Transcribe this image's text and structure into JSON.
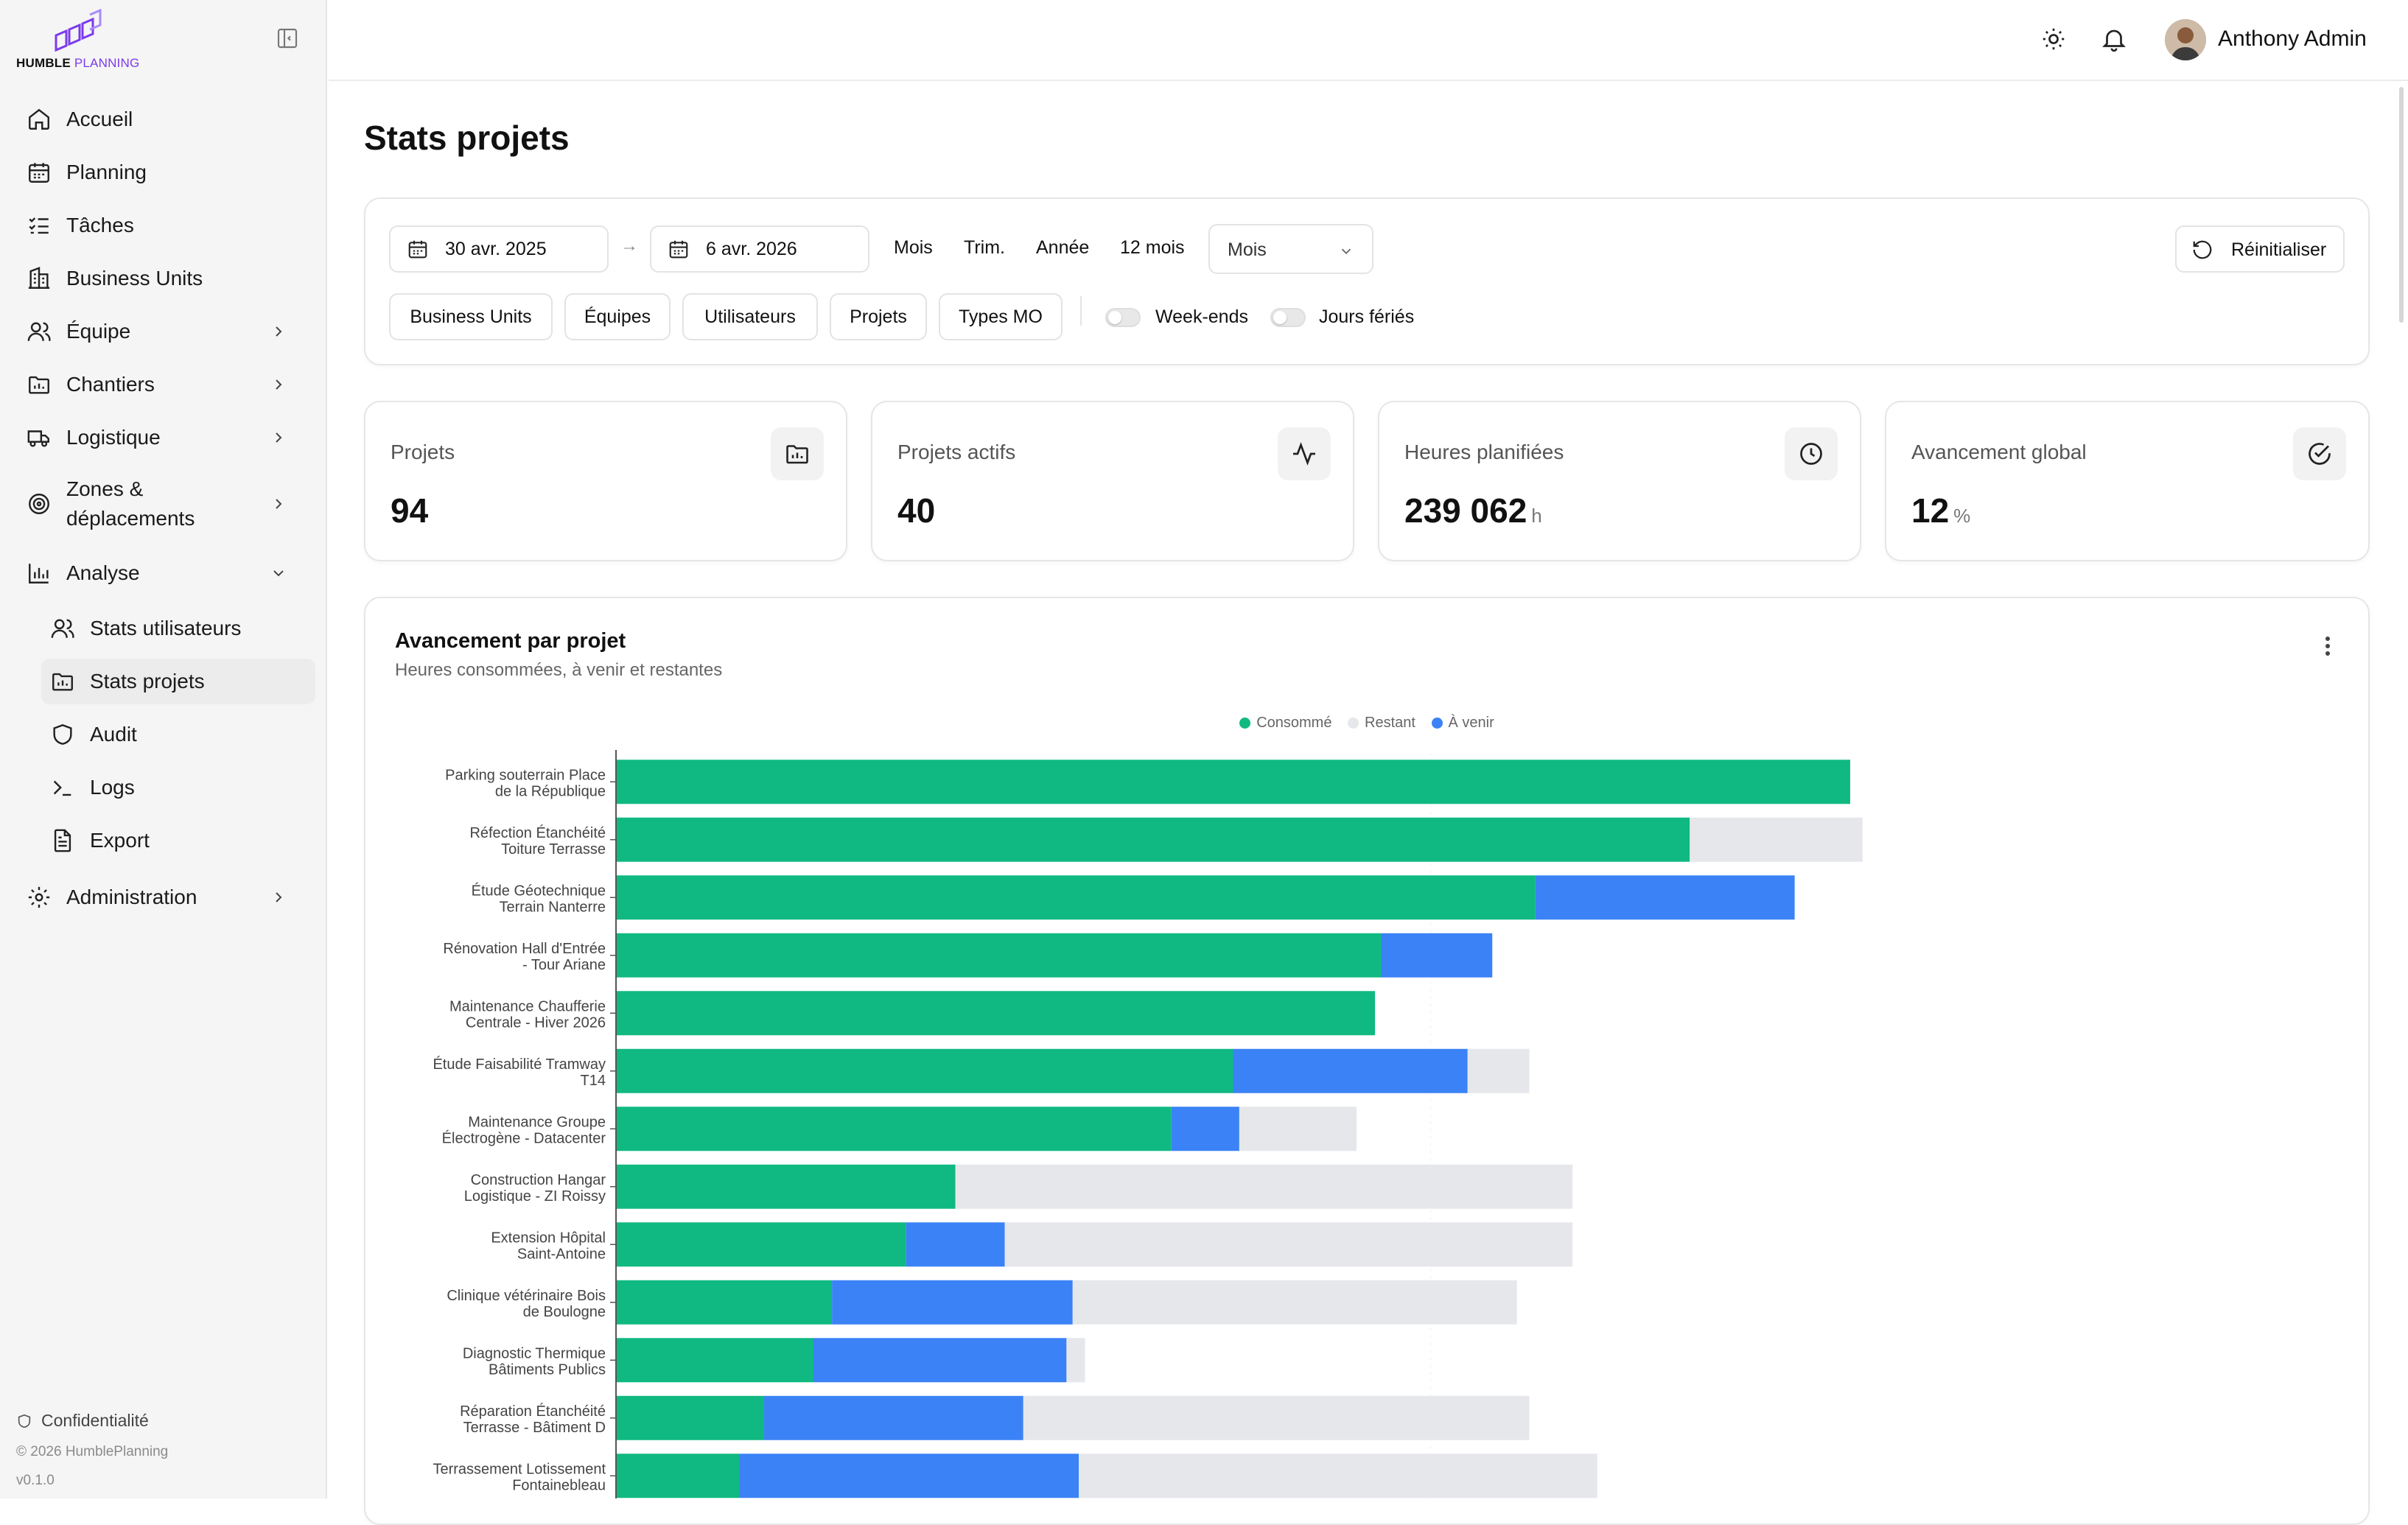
{
  "brand": {
    "name_bold": "HUMBLE",
    "name_light": "PLANNING",
    "accent_color": "#7c3aed"
  },
  "sidebar": {
    "items": [
      {
        "label": "Accueil",
        "icon": "home-icon",
        "chevron": false
      },
      {
        "label": "Planning",
        "icon": "calendar-icon",
        "chevron": false
      },
      {
        "label": "Tâches",
        "icon": "list-checks-icon",
        "chevron": false
      },
      {
        "label": "Business Units",
        "icon": "building-icon",
        "chevron": false
      },
      {
        "label": "Équipe",
        "icon": "users-icon",
        "chevron": true
      },
      {
        "label": "Chantiers",
        "icon": "folder-icon",
        "chevron": true
      },
      {
        "label": "Logistique",
        "icon": "truck-icon",
        "chevron": true
      },
      {
        "label_line1": "Zones &",
        "label_line2": "déplacements",
        "icon": "target-icon",
        "chevron": true
      },
      {
        "label": "Analyse",
        "icon": "bar-chart-icon",
        "chevron": true,
        "expanded": true
      }
    ],
    "analyse_children": [
      {
        "label": "Stats utilisateurs",
        "icon": "users-icon"
      },
      {
        "label": "Stats projets",
        "icon": "folder-chart-icon",
        "active": true
      },
      {
        "label": "Audit",
        "icon": "shield-icon"
      },
      {
        "label": "Logs",
        "icon": "terminal-icon"
      },
      {
        "label": "Export",
        "icon": "file-text-icon"
      }
    ],
    "administration": {
      "label": "Administration",
      "icon": "gear-icon"
    },
    "footer": {
      "privacy": "Confidentialité",
      "copyright": "© 2026 HumblePlanning",
      "version": "v0.1.0"
    }
  },
  "header": {
    "user_name": "Anthony Admin"
  },
  "page": {
    "title": "Stats projets"
  },
  "filters": {
    "date_start": "30 avr. 2025",
    "date_end": "6 avr. 2026",
    "arrow": "→",
    "periods": [
      "Mois",
      "Trim.",
      "Année",
      "12 mois"
    ],
    "granularity": "Mois",
    "reset_label": "Réinitialiser",
    "chips": [
      "Business Units",
      "Équipes",
      "Utilisateurs",
      "Projets",
      "Types MO"
    ],
    "toggles": [
      {
        "label": "Week-ends",
        "on": false
      },
      {
        "label": "Jours fériés",
        "on": false
      }
    ]
  },
  "stats": [
    {
      "label": "Projets",
      "value": "94",
      "unit": "",
      "icon": "folder-chart-icon"
    },
    {
      "label": "Projets actifs",
      "value": "40",
      "unit": "",
      "icon": "activity-icon"
    },
    {
      "label": "Heures planifiées",
      "value": "239 062",
      "unit": "h",
      "icon": "clock-icon"
    },
    {
      "label": "Avancement global",
      "value": "12",
      "unit": "%",
      "icon": "check-circle-icon"
    }
  ],
  "chart_card": {
    "title": "Avancement par projet",
    "subtitle": "Heures consommées, à venir et restantes"
  },
  "chart_data": {
    "type": "bar",
    "orientation": "horizontal",
    "stacked": true,
    "grid": false,
    "legend_position": "top-center",
    "colors": {
      "Consommé": "#10b981",
      "Restant": "#e5e7eb",
      "À venir": "#3b82f6"
    },
    "legend": [
      "Consommé",
      "Restant",
      "À venir"
    ],
    "xlim": [
      0,
      100
    ],
    "categories": [
      [
        "Parking souterrain Place",
        "de la République"
      ],
      [
        "Réfection Étanchéité",
        "Toiture Terrasse"
      ],
      [
        "Étude Géotechnique",
        "Terrain Nanterre"
      ],
      [
        "Rénovation Hall d'Entrée",
        "- Tour Ariane"
      ],
      [
        "Maintenance Chaufferie",
        "Centrale - Hiver 2026"
      ],
      [
        "Étude Faisabilité Tramway",
        "T14"
      ],
      [
        "Maintenance Groupe",
        "Électrogène - Datacenter"
      ],
      [
        "Construction Hangar",
        "Logistique - ZI Roissy"
      ],
      [
        "Extension Hôpital",
        "Saint-Antoine"
      ],
      [
        "Clinique vétérinaire Bois",
        "de Boulogne"
      ],
      [
        "Diagnostic Thermique",
        "Bâtiments Publics"
      ],
      [
        "Réparation Étanchéité",
        "Terrasse - Bâtiment D"
      ],
      [
        "Terrassement Lotissement",
        "Fontainebleau"
      ]
    ],
    "series": [
      {
        "name": "Consommé",
        "values": [
          100,
          87,
          74.5,
          62,
          61.5,
          50,
          45,
          27.5,
          23.5,
          17.5,
          16,
          12,
          10
        ]
      },
      {
        "name": "À venir",
        "values": [
          0,
          0,
          21,
          9,
          0,
          19,
          5.5,
          0,
          8,
          19.5,
          20.5,
          21,
          27.5
        ]
      },
      {
        "name": "Restant",
        "values": [
          0,
          14,
          0,
          0,
          0,
          5,
          9.5,
          50,
          46,
          36,
          1.5,
          41,
          42
        ]
      }
    ]
  }
}
